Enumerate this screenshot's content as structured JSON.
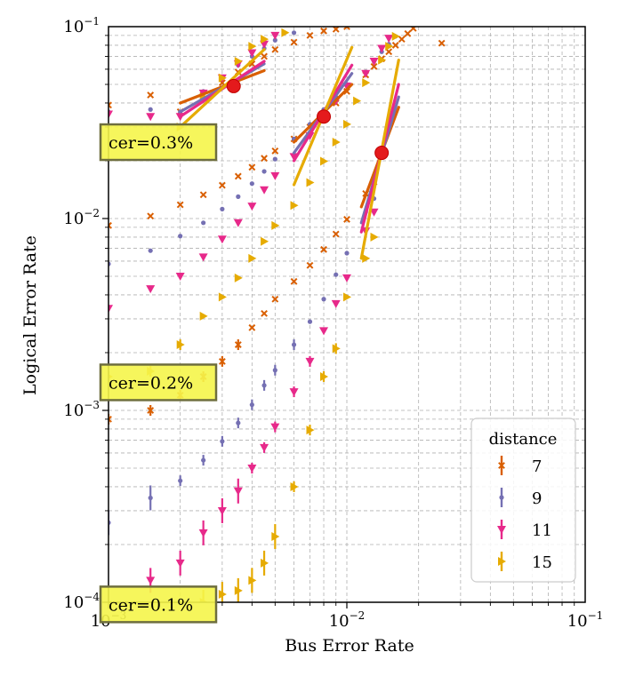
{
  "chart_data": {
    "type": "scatter",
    "title": "",
    "xlabel": "Bus Error Rate",
    "ylabel": "Logical Error Rate",
    "xscale": "log",
    "yscale": "log",
    "xlim": [
      0.001,
      0.1
    ],
    "ylim": [
      0.0001,
      0.1
    ],
    "x_tick_labels": [
      {
        "value": 0.001,
        "base": "10",
        "exp": "−3"
      },
      {
        "value": 0.01,
        "base": "10",
        "exp": "−2"
      },
      {
        "value": 0.1,
        "base": "10",
        "exp": "−1"
      }
    ],
    "y_tick_labels": [
      {
        "value": 0.0001,
        "base": "10",
        "exp": "−4"
      },
      {
        "value": 0.001,
        "base": "10",
        "exp": "−3"
      },
      {
        "value": 0.01,
        "base": "10",
        "exp": "−2"
      },
      {
        "value": 0.1,
        "base": "10",
        "exp": "−1"
      }
    ],
    "grid": true,
    "legend": {
      "title": "distance",
      "placement": "bottom-right",
      "entries": [
        {
          "label": "7",
          "color": "#d95f02",
          "marker": "x"
        },
        {
          "label": "9",
          "color": "#7570b3",
          "marker": "dot"
        },
        {
          "label": "11",
          "color": "#e7298a",
          "marker": "triangle-down"
        },
        {
          "label": "15",
          "color": "#e6ab02",
          "marker": "triangle-right"
        }
      ]
    },
    "annotations": [
      {
        "text": "cer=0.3%",
        "y": 0.025
      },
      {
        "text": "cer=0.2%",
        "y": 0.0014
      },
      {
        "text": "cer=0.1%",
        "y": 9.75e-05
      }
    ],
    "thresholds": [
      {
        "x": 0.00335,
        "y": 0.049
      },
      {
        "x": 0.008,
        "y": 0.034
      },
      {
        "x": 0.014,
        "y": 0.022
      }
    ],
    "fit_lines": [
      {
        "group": "cer=0.3%",
        "distance": "7",
        "points": [
          [
            0.002,
            0.04
          ],
          [
            0.0045,
            0.059
          ]
        ]
      },
      {
        "group": "cer=0.3%",
        "distance": "9",
        "points": [
          [
            0.002,
            0.036
          ],
          [
            0.0045,
            0.064
          ]
        ]
      },
      {
        "group": "cer=0.3%",
        "distance": "11",
        "points": [
          [
            0.002,
            0.034
          ],
          [
            0.0045,
            0.066
          ]
        ]
      },
      {
        "group": "cer=0.3%",
        "distance": "15",
        "points": [
          [
            0.002,
            0.03
          ],
          [
            0.0045,
            0.076
          ]
        ]
      },
      {
        "group": "cer=0.2%",
        "distance": "7",
        "points": [
          [
            0.006,
            0.025
          ],
          [
            0.0105,
            0.05
          ]
        ]
      },
      {
        "group": "cer=0.2%",
        "distance": "9",
        "points": [
          [
            0.006,
            0.022
          ],
          [
            0.0105,
            0.057
          ]
        ]
      },
      {
        "group": "cer=0.2%",
        "distance": "11",
        "points": [
          [
            0.006,
            0.02
          ],
          [
            0.0105,
            0.063
          ]
        ]
      },
      {
        "group": "cer=0.2%",
        "distance": "15",
        "points": [
          [
            0.006,
            0.015
          ],
          [
            0.0105,
            0.078
          ]
        ]
      },
      {
        "group": "cer=0.1%",
        "distance": "7",
        "points": [
          [
            0.0115,
            0.0115
          ],
          [
            0.0165,
            0.038
          ]
        ]
      },
      {
        "group": "cer=0.1%",
        "distance": "9",
        "points": [
          [
            0.0115,
            0.0095
          ],
          [
            0.0165,
            0.043
          ]
        ]
      },
      {
        "group": "cer=0.1%",
        "distance": "11",
        "points": [
          [
            0.0115,
            0.0085
          ],
          [
            0.0165,
            0.05
          ]
        ]
      },
      {
        "group": "cer=0.1%",
        "distance": "15",
        "points": [
          [
            0.0115,
            0.0062
          ],
          [
            0.0165,
            0.067
          ]
        ]
      }
    ],
    "series": [
      {
        "name": "7",
        "color": "#d95f02",
        "marker": "x",
        "points": [
          [
            0.001,
            0.039
          ],
          [
            0.0015,
            0.044
          ],
          [
            0.002,
            0.036
          ],
          [
            0.0025,
            0.044
          ],
          [
            0.003,
            0.051
          ],
          [
            0.0035,
            0.058
          ],
          [
            0.004,
            0.064
          ],
          [
            0.0045,
            0.07
          ],
          [
            0.005,
            0.076
          ],
          [
            0.006,
            0.083
          ],
          [
            0.007,
            0.09
          ],
          [
            0.008,
            0.095
          ],
          [
            0.009,
            0.097
          ],
          [
            0.01,
            0.1
          ],
          [
            0.001,
            0.0092
          ],
          [
            0.0015,
            0.0103
          ],
          [
            0.002,
            0.0118
          ],
          [
            0.0025,
            0.0133
          ],
          [
            0.003,
            0.0149
          ],
          [
            0.0035,
            0.0166
          ],
          [
            0.004,
            0.0185
          ],
          [
            0.0045,
            0.0206
          ],
          [
            0.005,
            0.0225
          ],
          [
            0.006,
            0.026
          ],
          [
            0.007,
            0.03
          ],
          [
            0.008,
            0.035
          ],
          [
            0.009,
            0.04
          ],
          [
            0.01,
            0.046
          ],
          [
            0.012,
            0.056
          ],
          [
            0.013,
            0.062
          ],
          [
            0.014,
            0.068
          ],
          [
            0.015,
            0.074
          ],
          [
            0.016,
            0.08
          ],
          [
            0.017,
            0.086
          ],
          [
            0.018,
            0.092
          ],
          [
            0.019,
            0.098
          ],
          [
            0.025,
            0.082
          ],
          [
            0.001,
            0.0009
          ],
          [
            0.0015,
            0.001
          ],
          [
            0.002,
            0.0012
          ],
          [
            0.0025,
            0.0015
          ],
          [
            0.003,
            0.0018
          ],
          [
            0.0035,
            0.0022
          ],
          [
            0.004,
            0.0027
          ],
          [
            0.0045,
            0.0032
          ],
          [
            0.005,
            0.0038
          ],
          [
            0.006,
            0.0047
          ],
          [
            0.007,
            0.0057
          ],
          [
            0.008,
            0.0069
          ],
          [
            0.009,
            0.0083
          ],
          [
            0.01,
            0.0099
          ],
          [
            0.012,
            0.0135
          ],
          [
            0.013,
            0.0155
          ]
        ]
      },
      {
        "name": "9",
        "color": "#7570b3",
        "marker": "dot",
        "points": [
          [
            0.001,
            0.036
          ],
          [
            0.0015,
            0.037
          ],
          [
            0.002,
            0.036
          ],
          [
            0.0025,
            0.046
          ],
          [
            0.003,
            0.054
          ],
          [
            0.0035,
            0.063
          ],
          [
            0.004,
            0.07
          ],
          [
            0.0045,
            0.077
          ],
          [
            0.005,
            0.085
          ],
          [
            0.006,
            0.093
          ],
          [
            0.001,
            0.0058
          ],
          [
            0.0015,
            0.0068
          ],
          [
            0.002,
            0.0081
          ],
          [
            0.0025,
            0.0095
          ],
          [
            0.003,
            0.0112
          ],
          [
            0.0035,
            0.013
          ],
          [
            0.004,
            0.0152
          ],
          [
            0.0045,
            0.0176
          ],
          [
            0.005,
            0.0204
          ],
          [
            0.006,
            0.026
          ],
          [
            0.007,
            0.031
          ],
          [
            0.008,
            0.037
          ],
          [
            0.009,
            0.043
          ],
          [
            0.01,
            0.05
          ],
          [
            0.012,
            0.058
          ],
          [
            0.013,
            0.066
          ],
          [
            0.014,
            0.074
          ],
          [
            0.015,
            0.081
          ],
          [
            0.016,
            0.089
          ],
          [
            0.001,
            0.00026
          ],
          [
            0.0015,
            0.00035
          ],
          [
            0.002,
            0.00043
          ],
          [
            0.0025,
            0.00055
          ],
          [
            0.003,
            0.00069
          ],
          [
            0.0035,
            0.00086
          ],
          [
            0.004,
            0.00107
          ],
          [
            0.0045,
            0.00135
          ],
          [
            0.005,
            0.00162
          ],
          [
            0.006,
            0.0022
          ],
          [
            0.007,
            0.0029
          ],
          [
            0.008,
            0.0038
          ],
          [
            0.009,
            0.0051
          ],
          [
            0.01,
            0.0066
          ],
          [
            0.012,
            0.0108
          ],
          [
            0.013,
            0.0127
          ]
        ]
      },
      {
        "name": "11",
        "color": "#e7298a",
        "marker": "triangle-down",
        "points": [
          [
            0.001,
            0.035
          ],
          [
            0.0015,
            0.034
          ],
          [
            0.002,
            0.034
          ],
          [
            0.0025,
            0.045
          ],
          [
            0.003,
            0.054
          ],
          [
            0.0035,
            0.064
          ],
          [
            0.004,
            0.073
          ],
          [
            0.0045,
            0.081
          ],
          [
            0.005,
            0.09
          ],
          [
            0.001,
            0.0034
          ],
          [
            0.0015,
            0.0043
          ],
          [
            0.002,
            0.005
          ],
          [
            0.0025,
            0.0063
          ],
          [
            0.003,
            0.0078
          ],
          [
            0.0035,
            0.0095
          ],
          [
            0.004,
            0.0116
          ],
          [
            0.0045,
            0.0141
          ],
          [
            0.005,
            0.0167
          ],
          [
            0.006,
            0.021
          ],
          [
            0.007,
            0.027
          ],
          [
            0.008,
            0.034
          ],
          [
            0.009,
            0.041
          ],
          [
            0.01,
            0.049
          ],
          [
            0.012,
            0.057
          ],
          [
            0.013,
            0.066
          ],
          [
            0.014,
            0.077
          ],
          [
            0.015,
            0.087
          ],
          [
            0.0015,
            0.00013
          ],
          [
            0.002,
            0.00016
          ],
          [
            0.0025,
            0.00023
          ],
          [
            0.003,
            0.0003
          ],
          [
            0.0035,
            0.00038
          ],
          [
            0.004,
            0.0005
          ],
          [
            0.0045,
            0.00064
          ],
          [
            0.005,
            0.00082
          ],
          [
            0.006,
            0.00125
          ],
          [
            0.007,
            0.0018
          ],
          [
            0.008,
            0.0026
          ],
          [
            0.009,
            0.0036
          ],
          [
            0.01,
            0.0049
          ],
          [
            0.012,
            0.0086
          ],
          [
            0.013,
            0.0108
          ]
        ]
      },
      {
        "name": "15",
        "color": "#e6ab02",
        "marker": "triangle-right",
        "points": [
          [
            0.002,
            0.03
          ],
          [
            0.0025,
            0.043
          ],
          [
            0.003,
            0.054
          ],
          [
            0.0035,
            0.066
          ],
          [
            0.004,
            0.079
          ],
          [
            0.0045,
            0.086
          ],
          [
            0.0055,
            0.093
          ],
          [
            0.001,
            0.0015
          ],
          [
            0.0015,
            0.0016
          ],
          [
            0.002,
            0.0022
          ],
          [
            0.0025,
            0.0031
          ],
          [
            0.003,
            0.0039
          ],
          [
            0.0035,
            0.0049
          ],
          [
            0.004,
            0.0062
          ],
          [
            0.0045,
            0.0076
          ],
          [
            0.005,
            0.0092
          ],
          [
            0.006,
            0.0117
          ],
          [
            0.007,
            0.0154
          ],
          [
            0.008,
            0.0199
          ],
          [
            0.009,
            0.025
          ],
          [
            0.01,
            0.031
          ],
          [
            0.011,
            0.041
          ],
          [
            0.012,
            0.051
          ],
          [
            0.014,
            0.067
          ],
          [
            0.015,
            0.079
          ],
          [
            0.016,
            0.089
          ],
          [
            0.0025,
            0.0001
          ],
          [
            0.003,
            0.00011
          ],
          [
            0.0035,
            0.000115
          ],
          [
            0.004,
            0.00013
          ],
          [
            0.0045,
            0.00016
          ],
          [
            0.005,
            0.00022
          ],
          [
            0.006,
            0.0004
          ],
          [
            0.007,
            0.00079
          ],
          [
            0.008,
            0.0015
          ],
          [
            0.009,
            0.0021
          ],
          [
            0.01,
            0.0039
          ],
          [
            0.012,
            0.0062
          ],
          [
            0.013,
            0.008
          ]
        ]
      }
    ]
  }
}
